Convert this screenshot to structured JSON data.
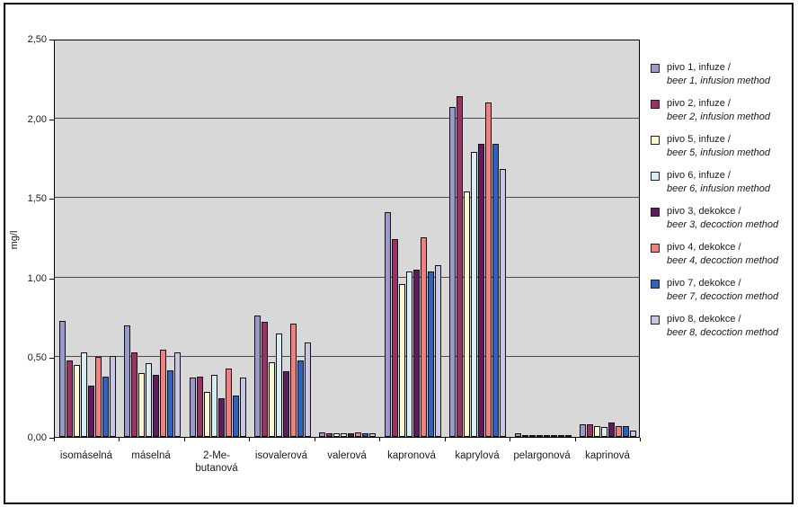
{
  "chart_data": {
    "type": "bar",
    "title": "",
    "xlabel": "",
    "ylabel": "mg/l",
    "ylim": [
      0,
      2.5
    ],
    "ytick_step": 0.5,
    "ytick_labels": [
      "0,00",
      "0,50",
      "1,00",
      "1,50",
      "2,00",
      "2,50"
    ],
    "grid": true,
    "plot_background": "#D8D8D8",
    "legend_position": "right",
    "categories": [
      "isomáselná",
      "máselná",
      "2-Me-\nbutanová",
      "isovalerová",
      "valerová",
      "kapronová",
      "kaprylová",
      "pelargonová",
      "kaprinová"
    ],
    "series": [
      {
        "name_cs": "pivo 1, infuze /",
        "name_en": "beer 1, infusion method",
        "color": "#9999CC",
        "values": [
          0.73,
          0.7,
          0.37,
          0.76,
          0.03,
          1.41,
          2.07,
          0.02,
          0.08
        ]
      },
      {
        "name_cs": "pivo 2, infuze /",
        "name_en": "beer 2, infusion method",
        "color": "#993366",
        "values": [
          0.48,
          0.53,
          0.38,
          0.72,
          0.02,
          1.24,
          2.14,
          0.01,
          0.08
        ]
      },
      {
        "name_cs": "pivo 5, infuze /",
        "name_en": "beer 5, infusion method",
        "color": "#FAF6D2",
        "values": [
          0.45,
          0.4,
          0.28,
          0.47,
          0.02,
          0.96,
          1.54,
          0.01,
          0.07
        ]
      },
      {
        "name_cs": "pivo 6, infuze /",
        "name_en": "beer 6, infusion method",
        "color": "#D8ECF4",
        "values": [
          0.53,
          0.46,
          0.39,
          0.65,
          0.02,
          1.04,
          1.79,
          0.01,
          0.06
        ]
      },
      {
        "name_cs": "pivo 3, dekokce /",
        "name_en": "beer 3, decoction method",
        "color": "#601A60",
        "values": [
          0.32,
          0.39,
          0.24,
          0.41,
          0.02,
          1.05,
          1.84,
          0.01,
          0.09
        ]
      },
      {
        "name_cs": "pivo 4, dekokce /",
        "name_en": "beer 4, decoction method",
        "color": "#F07F80",
        "values": [
          0.5,
          0.55,
          0.43,
          0.71,
          0.03,
          1.25,
          2.1,
          0.01,
          0.07
        ]
      },
      {
        "name_cs": "pivo 7, dekokce /",
        "name_en": "beer 7, decoction method",
        "color": "#3061BE",
        "values": [
          0.38,
          0.42,
          0.26,
          0.48,
          0.02,
          1.04,
          1.84,
          0.01,
          0.07
        ]
      },
      {
        "name_cs": "pivo 8, dekokce /",
        "name_en": "beer 8, decoction method",
        "color": "#C8C6E4",
        "values": [
          0.51,
          0.53,
          0.37,
          0.59,
          0.02,
          1.08,
          1.68,
          0.01,
          0.04
        ]
      }
    ]
  }
}
